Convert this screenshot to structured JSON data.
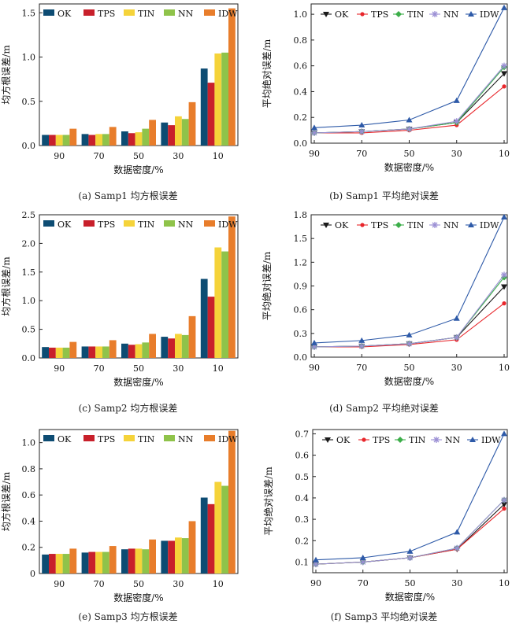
{
  "colors": {
    "OK": "#0d4c73",
    "TPS": "#c8202b",
    "TIN": "#f5d33a",
    "NN": "#8fc34a",
    "IDW": "#e87d2b",
    "lineOK": "#1a1a1a",
    "lineTPS": "#e8262b",
    "lineTIN": "#3cae49",
    "lineNN": "#9b8fd4",
    "lineIDW": "#2e5aa8"
  },
  "panels": [
    {
      "id": "a",
      "caption": "(a) Samp1 均方根误差",
      "chart_data": {
        "type": "bar",
        "title": "",
        "xlabel": "数据密度/%",
        "ylabel": "均方根误差/m",
        "categories": [
          "90",
          "70",
          "50",
          "30",
          "10"
        ],
        "ylim": [
          0,
          1.6
        ],
        "yticks": [
          0,
          0.5,
          1.0,
          1.5
        ],
        "ytick_labels": [
          "0.0",
          "0.5",
          "1.0",
          "1.5"
        ],
        "legend": "top",
        "series": [
          {
            "name": "OK",
            "values": [
              0.12,
              0.13,
              0.16,
              0.26,
              0.87
            ]
          },
          {
            "name": "TPS",
            "values": [
              0.12,
              0.12,
              0.14,
              0.23,
              0.71
            ]
          },
          {
            "name": "TIN",
            "values": [
              0.12,
              0.13,
              0.15,
              0.33,
              1.04
            ]
          },
          {
            "name": "NN",
            "values": [
              0.12,
              0.13,
              0.19,
              0.3,
              1.05
            ]
          },
          {
            "name": "IDW",
            "values": [
              0.19,
              0.21,
              0.29,
              0.49,
              1.55
            ]
          }
        ]
      }
    },
    {
      "id": "b",
      "caption": "(b) Samp1 平均绝对误差",
      "chart_data": {
        "type": "line",
        "title": "",
        "xlabel": "数据密度/%",
        "ylabel": "平均绝对误差/m",
        "categories": [
          "90",
          "70",
          "50",
          "30",
          "10"
        ],
        "ylim": [
          0,
          1.08
        ],
        "yticks": [
          0,
          0.2,
          0.4,
          0.6,
          0.8,
          1.0
        ],
        "ytick_labels": [
          "0.0",
          "0.2",
          "0.4",
          "0.6",
          "0.8",
          "1.0"
        ],
        "legend": "top",
        "series": [
          {
            "name": "OK",
            "values": [
              0.08,
              0.09,
              0.11,
              0.16,
              0.54
            ]
          },
          {
            "name": "TPS",
            "values": [
              0.08,
              0.08,
              0.1,
              0.14,
              0.44
            ]
          },
          {
            "name": "TIN",
            "values": [
              0.08,
              0.09,
              0.11,
              0.16,
              0.59
            ]
          },
          {
            "name": "NN",
            "values": [
              0.08,
              0.09,
              0.11,
              0.17,
              0.6
            ]
          },
          {
            "name": "IDW",
            "values": [
              0.12,
              0.14,
              0.18,
              0.33,
              1.05
            ]
          }
        ]
      }
    },
    {
      "id": "c",
      "caption": "(c) Samp2 均方根误差",
      "chart_data": {
        "type": "bar",
        "title": "",
        "xlabel": "数据密度/%",
        "ylabel": "均方根误差/m",
        "categories": [
          "90",
          "70",
          "50",
          "30",
          "10"
        ],
        "ylim": [
          0,
          2.5
        ],
        "yticks": [
          0,
          0.5,
          1.0,
          1.5,
          2.0,
          2.5
        ],
        "ytick_labels": [
          "0.0",
          "0.5",
          "1.0",
          "1.5",
          "2.0",
          "2.5"
        ],
        "legend": "top",
        "series": [
          {
            "name": "OK",
            "values": [
              0.19,
              0.2,
              0.25,
              0.37,
              1.38
            ]
          },
          {
            "name": "TPS",
            "values": [
              0.18,
              0.2,
              0.23,
              0.34,
              1.07
            ]
          },
          {
            "name": "TIN",
            "values": [
              0.18,
              0.2,
              0.24,
              0.42,
              1.93
            ]
          },
          {
            "name": "NN",
            "values": [
              0.18,
              0.2,
              0.27,
              0.4,
              1.86
            ]
          },
          {
            "name": "IDW",
            "values": [
              0.28,
              0.31,
              0.42,
              0.73,
              2.47
            ]
          }
        ]
      }
    },
    {
      "id": "d",
      "caption": "(d) Samp2 平均绝对误差",
      "chart_data": {
        "type": "line",
        "title": "",
        "xlabel": "数据密度/%",
        "ylabel": "平均绝对误差/m",
        "categories": [
          "90",
          "70",
          "50",
          "30",
          "10"
        ],
        "ylim": [
          0,
          1.8
        ],
        "yticks": [
          0,
          0.3,
          0.6,
          0.9,
          1.2,
          1.5,
          1.8
        ],
        "ytick_labels": [
          "0.0",
          "0.3",
          "0.6",
          "0.9",
          "1.2",
          "1.5",
          "1.8"
        ],
        "legend": "top",
        "series": [
          {
            "name": "OK",
            "values": [
              0.13,
              0.14,
              0.17,
              0.25,
              0.89
            ]
          },
          {
            "name": "TPS",
            "values": [
              0.13,
              0.13,
              0.16,
              0.22,
              0.68
            ]
          },
          {
            "name": "TIN",
            "values": [
              0.13,
              0.14,
              0.17,
              0.25,
              1.01
            ]
          },
          {
            "name": "NN",
            "values": [
              0.13,
              0.14,
              0.17,
              0.25,
              1.04
            ]
          },
          {
            "name": "IDW",
            "values": [
              0.18,
              0.21,
              0.28,
              0.49,
              1.77
            ]
          }
        ]
      }
    },
    {
      "id": "e",
      "caption": "(e) Samp3 均方根误差",
      "chart_data": {
        "type": "bar",
        "title": "",
        "xlabel": "数据密度/%",
        "ylabel": "均方根误差/m",
        "categories": [
          "90",
          "70",
          "50",
          "30",
          "10"
        ],
        "ylim": [
          0,
          1.1
        ],
        "yticks": [
          0,
          0.2,
          0.4,
          0.6,
          0.8,
          1.0
        ],
        "ytick_labels": [
          "0",
          "0.2",
          "0.4",
          "0.6",
          "0.8",
          "1.0"
        ],
        "legend": "top",
        "series": [
          {
            "name": "OK",
            "values": [
              0.145,
              0.16,
              0.185,
              0.25,
              0.58
            ]
          },
          {
            "name": "TPS",
            "values": [
              0.15,
              0.165,
              0.19,
              0.25,
              0.53
            ]
          },
          {
            "name": "TIN",
            "values": [
              0.15,
              0.165,
              0.19,
              0.275,
              0.7
            ]
          },
          {
            "name": "NN",
            "values": [
              0.15,
              0.165,
              0.185,
              0.27,
              0.67
            ]
          },
          {
            "name": "IDW",
            "values": [
              0.19,
              0.21,
              0.26,
              0.4,
              1.09
            ]
          }
        ]
      }
    },
    {
      "id": "f",
      "caption": "(f) Samp3 平均绝对误差",
      "chart_data": {
        "type": "line",
        "title": "",
        "xlabel": "数据密度/%",
        "ylabel": "平均绝对误差/m",
        "categories": [
          "90",
          "70",
          "50",
          "30",
          "10"
        ],
        "ylim": [
          0.05,
          0.72
        ],
        "yticks": [
          0.1,
          0.2,
          0.3,
          0.4,
          0.5,
          0.6,
          0.7
        ],
        "ytick_labels": [
          "0.1",
          "0.2",
          "0.3",
          "0.4",
          "0.5",
          "0.6",
          "0.7"
        ],
        "legend": "top",
        "series": [
          {
            "name": "OK",
            "values": [
              0.09,
              0.1,
              0.12,
              0.16,
              0.37
            ]
          },
          {
            "name": "TPS",
            "values": [
              0.09,
              0.1,
              0.12,
              0.16,
              0.35
            ]
          },
          {
            "name": "TIN",
            "values": [
              0.09,
              0.1,
              0.12,
              0.165,
              0.39
            ]
          },
          {
            "name": "NN",
            "values": [
              0.09,
              0.1,
              0.12,
              0.165,
              0.39
            ]
          },
          {
            "name": "IDW",
            "values": [
              0.11,
              0.12,
              0.15,
              0.24,
              0.7
            ]
          }
        ]
      }
    }
  ]
}
